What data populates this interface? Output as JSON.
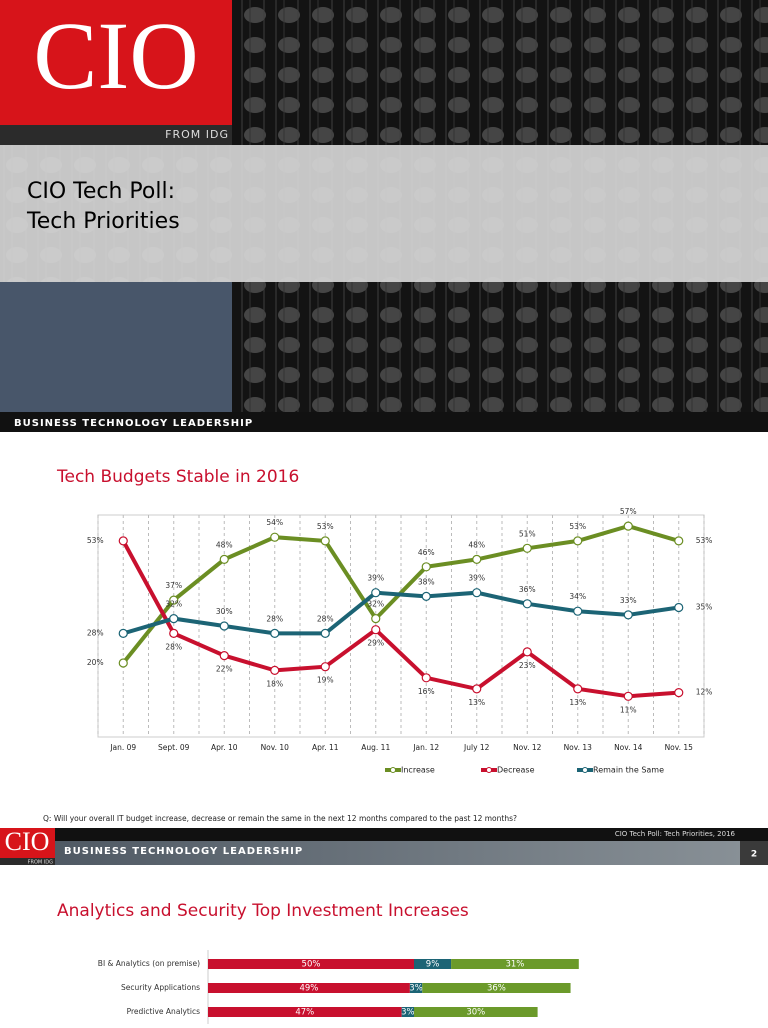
{
  "cover": {
    "logo": "CIO",
    "logo_sub": "FROM IDG",
    "title_lines": [
      "CIO Tech Poll:",
      "Tech Priorities"
    ],
    "tagline": "BUSINESS  TECHNOLOGY  LEADERSHIP"
  },
  "slide1": {
    "question": "Q: Will your overall IT budget increase, decrease or remain the same in the next 12 months compared to the past 12 months?",
    "footer": "CIO Tech Poll: Tech Priorities, 2016"
  },
  "slide2": {
    "logo": "CIO",
    "logo_sub": "FROM IDG",
    "tagline": "BUSINESS  TECHNOLOGY  LEADERSHIP",
    "page": "2"
  },
  "chart_data": [
    {
      "type": "line",
      "title": "Tech Budgets Stable in 2016",
      "categories": [
        "Jan. 09",
        "Sept. 09",
        "Apr. 10",
        "Nov. 10",
        "Apr. 11",
        "Aug. 11",
        "Jan. 12",
        "July 12",
        "Nov. 12",
        "Nov. 13",
        "Nov. 14",
        "Nov. 15"
      ],
      "ylim": [
        0,
        60
      ],
      "grid": true,
      "series": [
        {
          "name": "Increase",
          "color": "#6b8e23",
          "values": [
            20,
            37,
            48,
            54,
            53,
            32,
            46,
            48,
            51,
            53,
            57,
            53
          ],
          "value_labels": [
            "20%",
            "37%",
            "48%",
            "54%",
            "53%",
            "32%",
            "46%",
            "48%",
            "51%",
            "53%",
            "57%",
            "53%"
          ]
        },
        {
          "name": "Decrease",
          "color": "#c8102e",
          "values": [
            53,
            28,
            22,
            18,
            19,
            29,
            16,
            13,
            23,
            13,
            11,
            12
          ],
          "value_labels": [
            "53%",
            "28%",
            "22%",
            "18%",
            "19%",
            "29%",
            "16%",
            "13%",
            "23%",
            "13%",
            "11%",
            "12%"
          ]
        },
        {
          "name": "Remain the Same",
          "color": "#1c6475",
          "values": [
            28,
            32,
            30,
            28,
            28,
            39,
            38,
            39,
            36,
            34,
            33,
            35
          ],
          "value_labels": [
            "28%",
            "32%",
            "30%",
            "28%",
            "28%",
            "39%",
            "38%",
            "39%",
            "36%",
            "34%",
            "33%",
            "35%"
          ]
        }
      ]
    },
    {
      "type": "bar",
      "orientation": "horizontal",
      "stacked": true,
      "title": "Analytics and Security Top Investment Increases",
      "categories": [
        "BI & Analytics (on premise)",
        "Security Applications",
        "Predictive Analytics"
      ],
      "xlim": [
        0,
        100
      ],
      "series": [
        {
          "color": "#c8102e",
          "values": [
            50,
            49,
            47
          ],
          "value_labels": [
            "50%",
            "49%",
            "47%"
          ]
        },
        {
          "color": "#1c6475",
          "values": [
            9,
            3,
            3
          ],
          "value_labels": [
            "9%",
            "3%",
            "3%"
          ]
        },
        {
          "color": "#6b9a2a",
          "values": [
            31,
            36,
            30
          ],
          "value_labels": [
            "31%",
            "36%",
            "30%"
          ]
        }
      ]
    }
  ]
}
